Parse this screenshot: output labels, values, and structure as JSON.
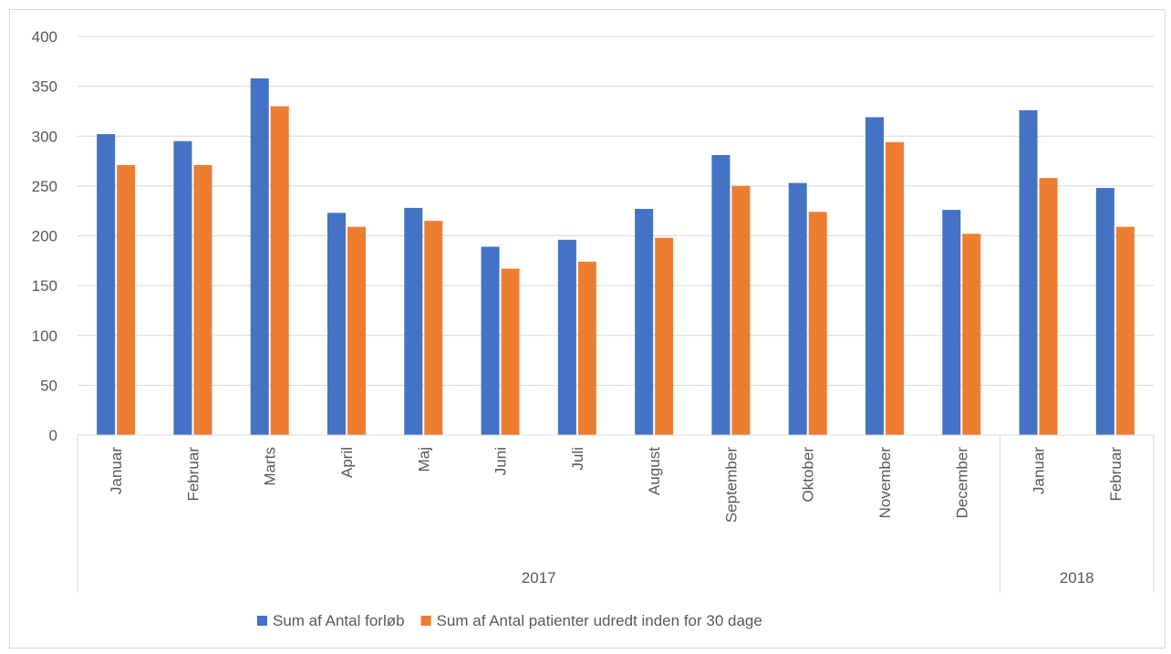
{
  "chart_data": {
    "type": "bar",
    "title": "",
    "xlabel": "",
    "ylabel": "",
    "ylim": [
      0,
      400
    ],
    "yticks": [
      0,
      50,
      100,
      150,
      200,
      250,
      300,
      350,
      400
    ],
    "grid": true,
    "legend_position": "bottom",
    "groups": [
      {
        "label": "2017",
        "categories": [
          "Januar",
          "Februar",
          "Marts",
          "April",
          "Maj",
          "Juni",
          "Juli",
          "August",
          "September",
          "Oktober",
          "November",
          "December"
        ]
      },
      {
        "label": "2018",
        "categories": [
          "Januar",
          "Februar"
        ]
      }
    ],
    "categories": [
      "Januar",
      "Februar",
      "Marts",
      "April",
      "Maj",
      "Juni",
      "Juli",
      "August",
      "September",
      "Oktober",
      "November",
      "December",
      "Januar",
      "Februar"
    ],
    "series": [
      {
        "name": "Sum af Antal forløb",
        "color": "#4472C4",
        "values": [
          302,
          295,
          358,
          223,
          228,
          189,
          196,
          227,
          281,
          253,
          319,
          226,
          326,
          248
        ]
      },
      {
        "name": "Sum af Antal patienter udredt inden for 30 dage",
        "color": "#ED7D31",
        "values": [
          271,
          271,
          330,
          209,
          215,
          167,
          174,
          198,
          250,
          224,
          294,
          202,
          258,
          209
        ]
      }
    ]
  }
}
